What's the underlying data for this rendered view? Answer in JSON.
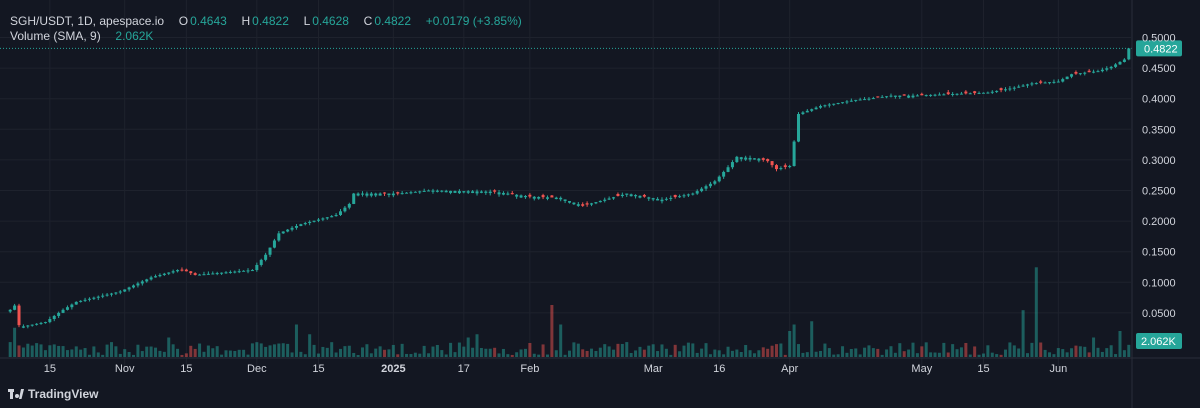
{
  "legend": {
    "symbol": "SGH/USDT, 1D, apespace.io",
    "o_label": "O",
    "o_value": "0.4643",
    "h_label": "H",
    "h_value": "0.4822",
    "l_label": "L",
    "l_value": "0.4628",
    "c_label": "C",
    "c_value": "0.4822",
    "change": "+0.0179 (+3.85%)",
    "volume_label": "Volume (SMA, 9)",
    "volume_value": "2.062K"
  },
  "branding": "TradingView",
  "colors": {
    "up": "#26a69a",
    "down": "#ef5350",
    "background": "#131722",
    "grid": "#1e222d",
    "text": "#d1d4dc"
  },
  "chart_data": {
    "type": "candlestick",
    "title": "SGH/USDT, 1D, apespace.io",
    "interval": "1D",
    "start_date": "2024-10-06",
    "y_price_ticks": [
      "0.5000",
      "0.4500",
      "0.4000",
      "0.3500",
      "0.3000",
      "0.2500",
      "0.2000",
      "0.1500",
      "0.1000",
      "0.0500"
    ],
    "ylim": [
      0.0,
      0.5
    ],
    "last_price_label": "0.4822",
    "last_volume_label": "2.062K",
    "x_ticks": [
      {
        "date": "2024-10-15",
        "label": "15"
      },
      {
        "date": "2024-11-01",
        "label": "Nov"
      },
      {
        "date": "2024-11-15",
        "label": "15"
      },
      {
        "date": "2024-12-01",
        "label": "Dec"
      },
      {
        "date": "2024-12-15",
        "label": "15"
      },
      {
        "date": "2025-01-01",
        "label": "2025"
      },
      {
        "date": "2025-01-17",
        "label": "17"
      },
      {
        "date": "2025-02-01",
        "label": "Feb"
      },
      {
        "date": "2025-03-01",
        "label": "Mar"
      },
      {
        "date": "2025-03-16",
        "label": "16"
      },
      {
        "date": "2025-04-01",
        "label": "Apr"
      },
      {
        "date": "2025-05-01",
        "label": "May"
      },
      {
        "date": "2025-05-15",
        "label": "15"
      },
      {
        "date": "2025-06-01",
        "label": "Jun"
      }
    ],
    "close_keyframes": [
      [
        0,
        0.055
      ],
      [
        1,
        0.062
      ],
      [
        2,
        0.03
      ],
      [
        3,
        0.028
      ],
      [
        8,
        0.035
      ],
      [
        12,
        0.055
      ],
      [
        15,
        0.068
      ],
      [
        25,
        0.085
      ],
      [
        32,
        0.108
      ],
      [
        38,
        0.12
      ],
      [
        40,
        0.118
      ],
      [
        42,
        0.112
      ],
      [
        55,
        0.12
      ],
      [
        58,
        0.145
      ],
      [
        61,
        0.18
      ],
      [
        66,
        0.195
      ],
      [
        74,
        0.21
      ],
      [
        77,
        0.228
      ],
      [
        78,
        0.245
      ],
      [
        88,
        0.245
      ],
      [
        95,
        0.25
      ],
      [
        110,
        0.248
      ],
      [
        118,
        0.24
      ],
      [
        125,
        0.238
      ],
      [
        130,
        0.225
      ],
      [
        135,
        0.235
      ],
      [
        140,
        0.245
      ],
      [
        148,
        0.235
      ],
      [
        155,
        0.245
      ],
      [
        160,
        0.265
      ],
      [
        163,
        0.288
      ],
      [
        165,
        0.305
      ],
      [
        170,
        0.302
      ],
      [
        172,
        0.298
      ],
      [
        174,
        0.285
      ],
      [
        177,
        0.29
      ],
      [
        178,
        0.33
      ],
      [
        179,
        0.375
      ],
      [
        184,
        0.388
      ],
      [
        192,
        0.398
      ],
      [
        195,
        0.4
      ],
      [
        200,
        0.405
      ],
      [
        205,
        0.405
      ],
      [
        215,
        0.408
      ],
      [
        222,
        0.41
      ],
      [
        228,
        0.418
      ],
      [
        232,
        0.425
      ],
      [
        238,
        0.428
      ],
      [
        241,
        0.44
      ],
      [
        247,
        0.445
      ],
      [
        250,
        0.452
      ],
      [
        253,
        0.464
      ],
      [
        254,
        0.4822
      ]
    ],
    "down_days": [
      2,
      39,
      40,
      41,
      42,
      85,
      88,
      110,
      114,
      118,
      121,
      123,
      130,
      131,
      138,
      144,
      151,
      171,
      172,
      173,
      174,
      176,
      197,
      203,
      207,
      213,
      217,
      219,
      225,
      234,
      242,
      245
    ],
    "volume_spikes": [
      [
        1,
        0.045
      ],
      [
        36,
        0.03
      ],
      [
        65,
        0.05
      ],
      [
        68,
        0.035
      ],
      [
        104,
        0.03
      ],
      [
        106,
        0.035
      ],
      [
        123,
        0.08
      ],
      [
        125,
        0.05
      ],
      [
        177,
        0.04
      ],
      [
        178,
        0.05
      ],
      [
        182,
        0.055
      ],
      [
        230,
        0.072
      ],
      [
        233,
        0.138
      ],
      [
        246,
        0.03
      ],
      [
        252,
        0.04
      ]
    ],
    "last_candle": {
      "open": 0.4643,
      "high": 0.4822,
      "low": 0.4628,
      "close": 0.4822,
      "change": 0.0179,
      "change_pct": 3.85
    }
  }
}
